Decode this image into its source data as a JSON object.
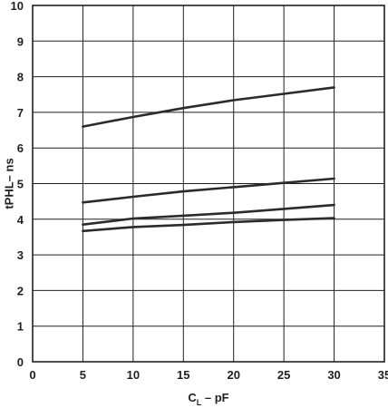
{
  "chart_data": {
    "type": "line",
    "title": "",
    "xlabel": {
      "main": "C",
      "sub": "L",
      "rest": " – pF"
    },
    "ylabel": "tPHL– ns",
    "xlim": [
      0,
      35
    ],
    "ylim": [
      0,
      10
    ],
    "xticks": [
      0,
      5,
      10,
      15,
      20,
      25,
      30,
      35
    ],
    "yticks": [
      0,
      1,
      2,
      3,
      4,
      5,
      6,
      7,
      8,
      9,
      10
    ],
    "grid": true,
    "line_color": "#2b2b2b",
    "series": [
      {
        "x": [
          5,
          10,
          15,
          20,
          25,
          30
        ],
        "y": [
          6.6,
          6.87,
          7.12,
          7.34,
          7.52,
          7.7
        ]
      },
      {
        "x": [
          5,
          10,
          15,
          20,
          25,
          30
        ],
        "y": [
          4.47,
          4.63,
          4.78,
          4.9,
          5.02,
          5.14
        ]
      },
      {
        "x": [
          5,
          10,
          15,
          20,
          25,
          30
        ],
        "y": [
          3.85,
          4.02,
          4.1,
          4.18,
          4.29,
          4.4
        ]
      },
      {
        "x": [
          5,
          10,
          15,
          20,
          25,
          30
        ],
        "y": [
          3.67,
          3.78,
          3.84,
          3.92,
          3.98,
          4.03
        ]
      }
    ]
  }
}
